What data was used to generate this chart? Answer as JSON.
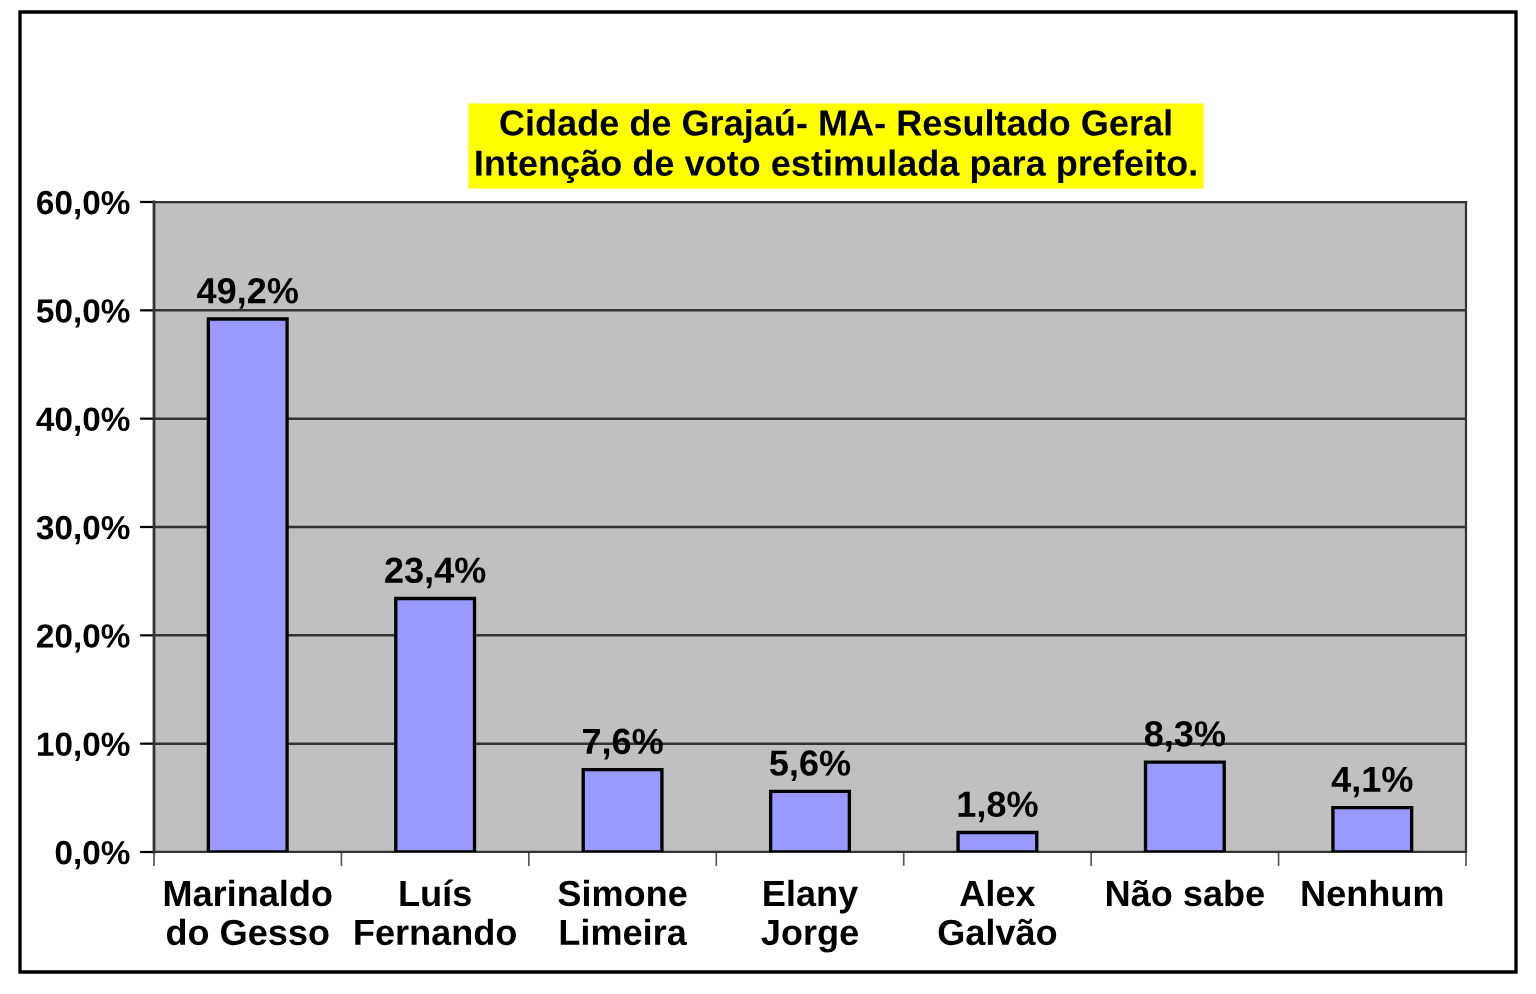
{
  "chart_data": {
    "type": "bar",
    "title": "Cidade de Grajaú- MA- Resultado Geral\nIntenção de voto estimulada para prefeito.",
    "categories": [
      "Marinaldo\ndo Gesso",
      "Luís\nFernando",
      "Simone\nLimeira",
      "Elany\nJorge",
      "Alex\nGalvão",
      "Não sabe",
      "Nenhum"
    ],
    "values": [
      49.2,
      23.4,
      7.6,
      5.6,
      1.8,
      8.3,
      4.1
    ],
    "value_labels": [
      "49,2%",
      "23,4%",
      "7,6%",
      "5,6%",
      "1,8%",
      "8,3%",
      "4,1%"
    ],
    "color": "#9999ff",
    "ylim": [
      0,
      60
    ],
    "yticks": [
      {
        "value": 0,
        "label": "0,0%"
      },
      {
        "value": 10,
        "label": "10,0%"
      },
      {
        "value": 20,
        "label": "20,0%"
      },
      {
        "value": 30,
        "label": "30,0%"
      },
      {
        "value": 40,
        "label": "40,0%"
      },
      {
        "value": 50,
        "label": "50,0%"
      },
      {
        "value": 60,
        "label": "60,0%"
      }
    ],
    "grid": "y"
  }
}
